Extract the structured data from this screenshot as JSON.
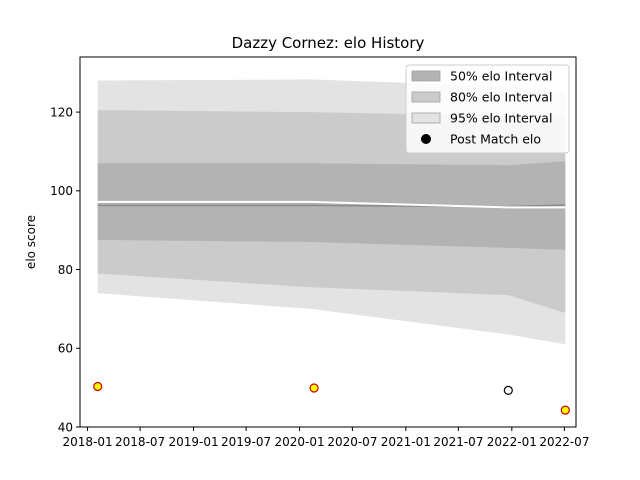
{
  "chart_data": {
    "type": "line",
    "title": "Dazzy Cornez: elo History",
    "xlabel": "",
    "ylabel": "elo score",
    "ylim": [
      40,
      134
    ],
    "xlim": [
      "2017-12-06",
      "2022-08-10"
    ],
    "yticks": [
      40,
      60,
      80,
      100,
      120
    ],
    "xticks": [
      "2018-01",
      "2018-07",
      "2019-01",
      "2019-07",
      "2020-01",
      "2020-07",
      "2021-01",
      "2021-07",
      "2022-01",
      "2022-07"
    ],
    "grid": false,
    "legend_position": "top-right",
    "colors": {
      "band50": "#b3b3b3",
      "band80": "#cbcbcb",
      "band95": "#e3e3e3",
      "mean_line": "#8a8a8a",
      "median_line": "#ffffff",
      "marker_face_win": "#ffff00",
      "marker_edge_win": "#cc0000",
      "marker_face_other": "#ffffff",
      "marker_edge_other": "#000000"
    },
    "series": [
      {
        "name": "50% elo Interval",
        "kind": "band",
        "x": [
          "2018-02-05",
          "2020-02-10",
          "2021-12-20",
          "2022-07-04"
        ],
        "lower": [
          87.5,
          87.0,
          85.5,
          85.0
        ],
        "upper": [
          107.0,
          107.0,
          106.5,
          107.5
        ]
      },
      {
        "name": "80% elo Interval",
        "kind": "band",
        "x": [
          "2018-02-05",
          "2020-02-10",
          "2021-12-20",
          "2022-07-04"
        ],
        "lower": [
          79.0,
          75.5,
          73.5,
          69.0
        ],
        "upper": [
          120.5,
          120.0,
          119.0,
          119.0
        ]
      },
      {
        "name": "95% elo Interval",
        "kind": "band",
        "x": [
          "2018-02-05",
          "2020-02-10",
          "2021-12-20",
          "2022-07-04"
        ],
        "lower": [
          74.0,
          70.0,
          63.5,
          61.0
        ],
        "upper": [
          128.0,
          128.3,
          126.5,
          125.0
        ]
      },
      {
        "name": "",
        "kind": "line",
        "x": [
          "2018-02-05",
          "2020-02-10",
          "2021-12-20",
          "2022-07-04"
        ],
        "y": [
          96.3,
          96.3,
          96.0,
          96.4
        ]
      },
      {
        "name": "",
        "kind": "line",
        "x": [
          "2018-02-05",
          "2020-02-10",
          "2021-12-20",
          "2022-07-04"
        ],
        "y": [
          97.2,
          97.2,
          95.8,
          95.8
        ]
      },
      {
        "name": "Post Match elo",
        "kind": "scatter",
        "points": [
          {
            "x": "2018-02-05",
            "y": 50.3,
            "result": "win"
          },
          {
            "x": "2020-02-20",
            "y": 49.9,
            "result": "win"
          },
          {
            "x": "2021-12-20",
            "y": 49.3,
            "result": "other"
          },
          {
            "x": "2022-07-04",
            "y": 44.3,
            "result": "win"
          }
        ]
      }
    ]
  }
}
